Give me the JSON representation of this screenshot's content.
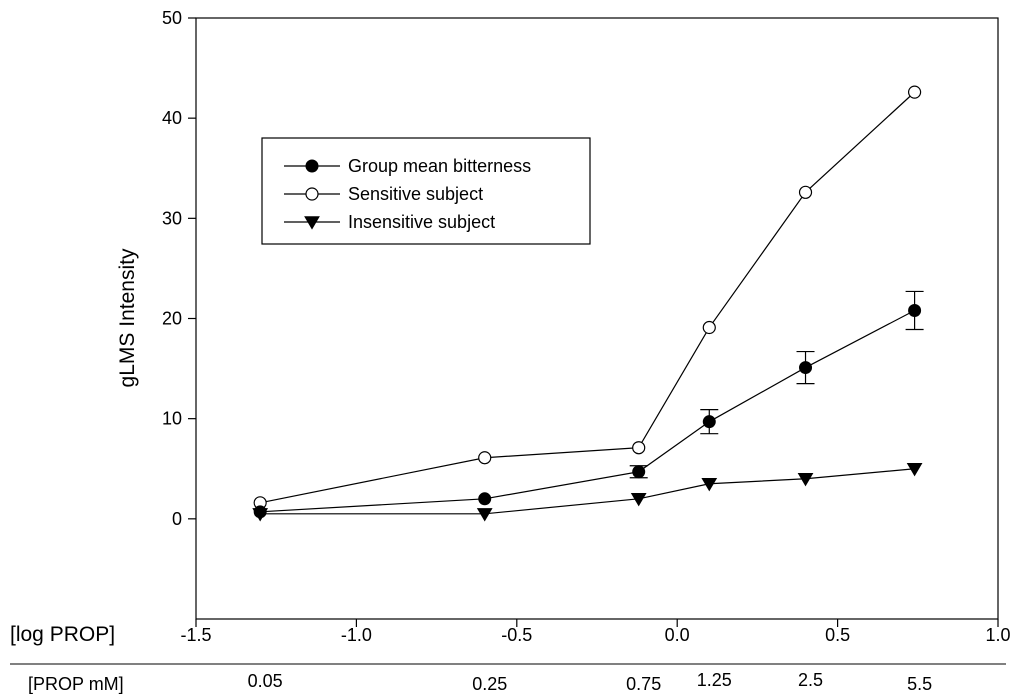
{
  "chart_data": {
    "type": "line",
    "xlabel": "[log PROP]",
    "ylabel": "gLMS Intensity",
    "xlim": [
      -1.5,
      1.0
    ],
    "ylim": [
      -10,
      50
    ],
    "xticks": [
      -1.5,
      -1.0,
      -0.5,
      0.0,
      0.5,
      1.0
    ],
    "xtick_labels": [
      "-1.5",
      "-1.0",
      "-0.5",
      "0.0",
      "0.5",
      "1.0"
    ],
    "yticks": [
      0,
      10,
      20,
      30,
      40,
      50
    ],
    "ytick_labels": [
      "0",
      "10",
      "20",
      "30",
      "40",
      "50"
    ],
    "grid": false,
    "legend_position": "top-left",
    "x": [
      -1.3,
      -0.6,
      -0.12,
      0.1,
      0.4,
      0.74
    ],
    "series": [
      {
        "name": "Group mean bitterness",
        "marker": "filled-circle",
        "values": [
          0.7,
          2.0,
          4.7,
          9.7,
          15.1,
          20.8
        ],
        "error": [
          0,
          0,
          0.6,
          1.2,
          1.6,
          1.9
        ]
      },
      {
        "name": "Sensitive subject",
        "marker": "open-circle",
        "values": [
          1.6,
          6.1,
          7.1,
          19.1,
          32.6,
          42.6
        ]
      },
      {
        "name": "Insensitive subject",
        "marker": "filled-triangle-down",
        "values": [
          0.5,
          0.5,
          2.0,
          3.5,
          4.0,
          5.0
        ]
      }
    ],
    "secondary_axis": {
      "label": "[PROP mM]",
      "labels": [
        "0.05",
        "0.25",
        "0.75",
        "1.25",
        "2.5",
        "5.5"
      ]
    }
  },
  "colors": {
    "line": "#000000",
    "background": "#ffffff"
  }
}
